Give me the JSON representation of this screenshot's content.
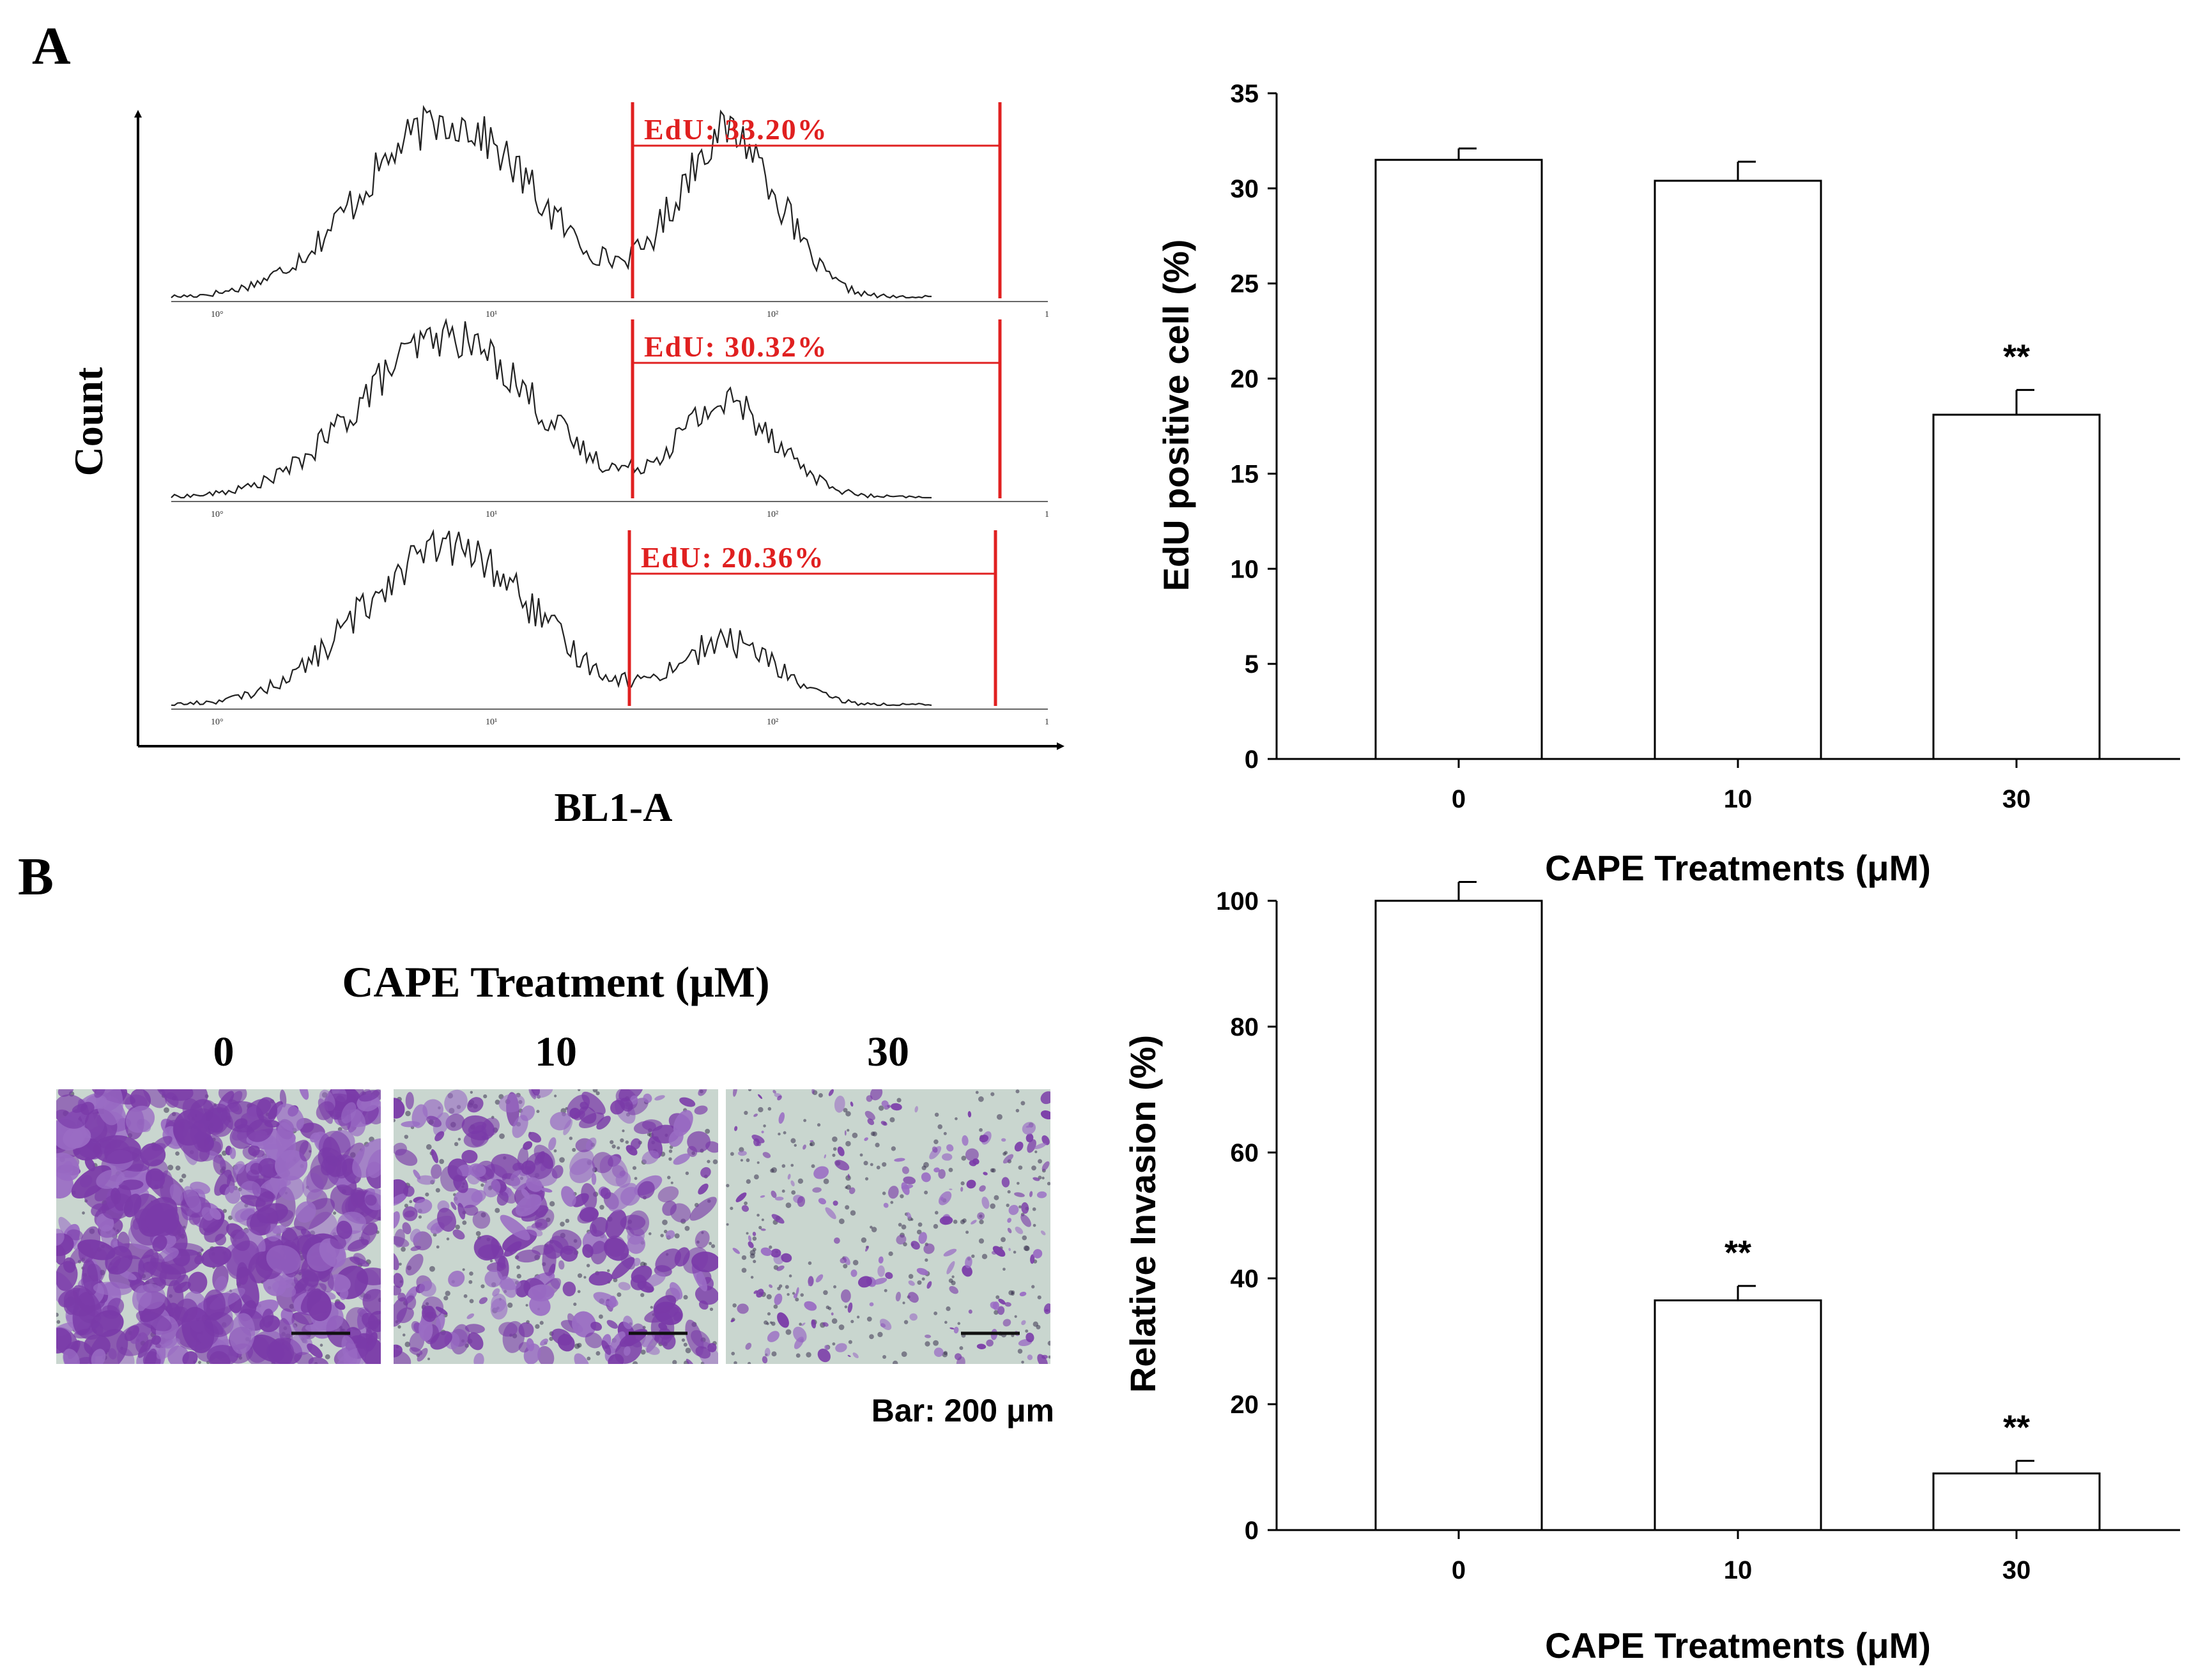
{
  "panels": {
    "A": "A",
    "B": "B"
  },
  "colors": {
    "gate": "#e02020",
    "stain": "#7a3aa8",
    "stain_light": "#9a6cc4",
    "membrane": "#c9d6cf",
    "bar_fill": "#ffffff",
    "ink": "#000000"
  },
  "flow": {
    "ylabel": "Count",
    "xlabel": "BL1-A",
    "histograms": [
      {
        "gate_label": "EdU: 33.20%",
        "gate_value": 33.2
      },
      {
        "gate_label": "EdU: 30.32%",
        "gate_value": 30.32
      },
      {
        "gate_label": "EdU: 20.36%",
        "gate_value": 20.36
      }
    ]
  },
  "invasion_images": {
    "title": "CAPE Treatment   (μM)",
    "labels": [
      "0",
      "10",
      "30"
    ],
    "scale_caption": "Bar: 200 μm"
  },
  "chart_data": [
    {
      "type": "bar",
      "categories": [
        "0",
        "10",
        "30"
      ],
      "values": [
        31.5,
        30.4,
        18.1
      ],
      "errors": [
        0.6,
        1.0,
        1.3
      ],
      "significance": [
        "",
        "",
        "**"
      ],
      "xlabel": "CAPE Treatments (μM)",
      "ylabel": "EdU positive cell (%)",
      "ylim": [
        0,
        35
      ],
      "yticks": [
        0,
        5,
        10,
        15,
        20,
        25,
        30,
        35
      ]
    },
    {
      "type": "bar",
      "categories": [
        "0",
        "10",
        "30"
      ],
      "values": [
        100,
        36.5,
        9
      ],
      "errors": [
        3,
        2.3,
        2
      ],
      "significance": [
        "",
        "**",
        "**"
      ],
      "xlabel": "CAPE Treatments  (μM)",
      "ylabel": "Relative Invasion (%)",
      "ylim": [
        0,
        100
      ],
      "yticks": [
        0,
        20,
        40,
        60,
        80,
        100
      ]
    }
  ]
}
